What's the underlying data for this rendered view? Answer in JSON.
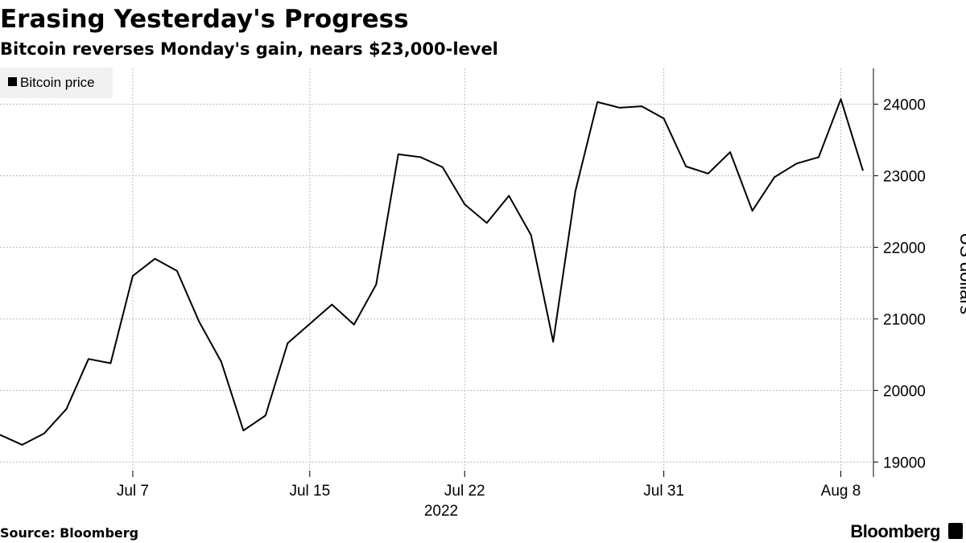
{
  "chart_data": {
    "type": "line",
    "title": "Erasing Yesterday's Progress",
    "subtitle": "Bitcoin reverses Monday's gain, nears $23,000-level",
    "y_axis_label": "US dollars",
    "x_axis_label": "2022",
    "source": "Source: Bloomberg",
    "brand": "Bloomberg",
    "legend_position": "top-left",
    "grid": true,
    "x": [
      "2022-07-01",
      "2022-07-02",
      "2022-07-03",
      "2022-07-04",
      "2022-07-05",
      "2022-07-06",
      "2022-07-07",
      "2022-07-08",
      "2022-07-09",
      "2022-07-10",
      "2022-07-11",
      "2022-07-12",
      "2022-07-13",
      "2022-07-14",
      "2022-07-15",
      "2022-07-16",
      "2022-07-17",
      "2022-07-18",
      "2022-07-19",
      "2022-07-20",
      "2022-07-21",
      "2022-07-22",
      "2022-07-23",
      "2022-07-24",
      "2022-07-25",
      "2022-07-26",
      "2022-07-27",
      "2022-07-28",
      "2022-07-29",
      "2022-07-30",
      "2022-07-31",
      "2022-08-01",
      "2022-08-02",
      "2022-08-03",
      "2022-08-04",
      "2022-08-05",
      "2022-08-06",
      "2022-08-07",
      "2022-08-08",
      "2022-08-09"
    ],
    "series": [
      {
        "name": "Bitcoin price",
        "color": "#000000",
        "values": [
          19380,
          19240,
          19400,
          19740,
          20440,
          20380,
          21600,
          21840,
          21670,
          20960,
          20400,
          19440,
          19650,
          20660,
          20930,
          21200,
          20920,
          21480,
          23300,
          23260,
          23120,
          22600,
          22340,
          22720,
          22170,
          20680,
          22780,
          24030,
          23950,
          23970,
          23800,
          23130,
          23030,
          23330,
          22510,
          22980,
          23170,
          23260,
          24070,
          23070
        ]
      }
    ],
    "xlim": [
      "2022-07-01",
      "2022-08-09"
    ],
    "xticks": [
      {
        "value": "2022-07-07",
        "label": "Jul 7"
      },
      {
        "value": "2022-07-15",
        "label": "Jul 15"
      },
      {
        "value": "2022-07-22",
        "label": "Jul 22"
      },
      {
        "value": "2022-07-31",
        "label": "Jul 31"
      },
      {
        "value": "2022-08-08",
        "label": "Aug 8"
      }
    ],
    "ylim": [
      18790,
      24500
    ],
    "yticks": [
      19000,
      20000,
      21000,
      22000,
      23000,
      24000
    ]
  }
}
